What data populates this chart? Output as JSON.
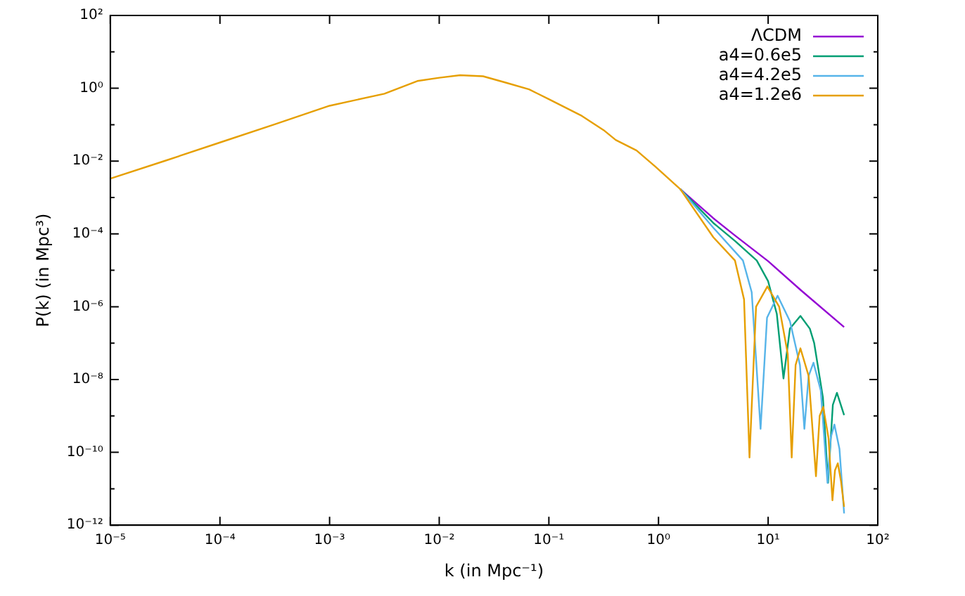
{
  "chart_data": {
    "type": "line",
    "xlabel": "k (in Mpc⁻¹)",
    "ylabel": "P(k) (in Mpc³)",
    "log": "xy",
    "grid": false,
    "legend": "top right",
    "marker": "none",
    "line_style": "solid",
    "xlim": [
      1e-05,
      100
    ],
    "ylim": [
      1e-12,
      100
    ],
    "xticks": [
      {
        "value": 1e-05,
        "label": "10⁻⁵"
      },
      {
        "value": 0.0001,
        "label": "10⁻⁴"
      },
      {
        "value": 0.001,
        "label": "10⁻³"
      },
      {
        "value": 0.01,
        "label": "10⁻²"
      },
      {
        "value": 0.1,
        "label": "10⁻¹"
      },
      {
        "value": 1,
        "label": "10⁰"
      },
      {
        "value": 10,
        "label": "10¹"
      },
      {
        "value": 100,
        "label": "10²"
      }
    ],
    "yticks": [
      {
        "value": 1e-12,
        "label": "10⁻¹²"
      },
      {
        "value": 1e-11,
        "label": null
      },
      {
        "value": 1e-10,
        "label": "10⁻¹⁰"
      },
      {
        "value": 1e-09,
        "label": null
      },
      {
        "value": 1e-08,
        "label": "10⁻⁸"
      },
      {
        "value": 1e-07,
        "label": null
      },
      {
        "value": 1e-06,
        "label": "10⁻⁶"
      },
      {
        "value": 1e-05,
        "label": null
      },
      {
        "value": 0.0001,
        "label": "10⁻⁴"
      },
      {
        "value": 0.001,
        "label": null
      },
      {
        "value": 0.01,
        "label": "10⁻²"
      },
      {
        "value": 0.1,
        "label": null
      },
      {
        "value": 1,
        "label": "10⁰"
      },
      {
        "value": 10,
        "label": null
      },
      {
        "value": 100,
        "label": "10²"
      }
    ],
    "series": [
      {
        "name": "ΛCDM",
        "color": "#9400d3",
        "x": [
          1.58,
          3.16,
          5.01,
          10,
          20,
          49.3
        ],
        "values": [
          0.0017,
          0.00027,
          8.9e-05,
          1.78e-05,
          2.8e-06,
          2.75e-07
        ]
      },
      {
        "name": "a4=0.6e5",
        "color": "#009e73",
        "x": [
          1.58,
          3.16,
          5.01,
          7.87,
          10,
          12.0,
          13.8,
          15.8,
          19.7,
          24.0,
          26.3,
          31.6,
          35.2,
          38.9,
          42.4,
          49.3
        ],
        "values": [
          0.0017,
          0.0002,
          6.3e-05,
          1.86e-05,
          5e-06,
          6.3e-07,
          1.07e-08,
          2.5e-07,
          5.6e-07,
          2.5e-07,
          1e-07,
          3.2e-09,
          1.45e-11,
          2e-09,
          4.3e-09,
          1.05e-09
        ]
      },
      {
        "name": "a4=4.2e5",
        "color": "#56b4e9",
        "x": [
          1.58,
          3.16,
          5.89,
          7.08,
          8.53,
          9.77,
          12.2,
          15.8,
          19.5,
          21.4,
          23.4,
          25.9,
          30.2,
          34.8,
          37.2,
          40.2,
          44.7,
          49.3
        ],
        "values": [
          0.0017,
          0.000148,
          1.86e-05,
          2.5e-06,
          4.4e-10,
          5e-07,
          2e-06,
          4e-07,
          2.5e-08,
          4.4e-10,
          1.26e-08,
          2.9e-08,
          5e-09,
          1.45e-11,
          2.5e-10,
          5.8e-10,
          1.26e-10,
          2.1e-12
        ]
      },
      {
        "name": "a4=1.2e6",
        "color": "#e69f00",
        "x": [
          1e-05,
          3.16e-05,
          0.0001,
          0.000316,
          0.001,
          0.00316,
          0.00631,
          0.01,
          0.0155,
          0.0251,
          0.0398,
          0.066,
          0.1,
          0.12,
          0.2,
          0.316,
          0.407,
          0.631,
          0.933,
          1.38,
          1.58,
          3.16,
          4.98,
          6.03,
          6.76,
          7.76,
          9.84,
          12.6,
          15.1,
          16.4,
          17.8,
          19.7,
          23.4,
          27.3,
          29.5,
          31.8,
          35.5,
          38.6,
          40.7,
          43.2,
          46.2,
          49.3
        ],
        "values": [
          0.0033,
          0.0102,
          0.0324,
          0.102,
          0.331,
          0.708,
          1.58,
          1.95,
          2.29,
          2.14,
          1.45,
          0.933,
          0.501,
          0.38,
          0.174,
          0.0708,
          0.038,
          0.0195,
          0.0071,
          0.00245,
          0.0017,
          8.1e-05,
          1.86e-05,
          1.58e-06,
          7.2e-11,
          1e-06,
          3.6e-06,
          1e-06,
          5e-08,
          7.2e-11,
          2.5e-08,
          7.2e-08,
          1.26e-08,
          2.2e-11,
          1e-09,
          1.78e-09,
          2.5e-10,
          4.8e-12,
          3.2e-11,
          5e-11,
          1.6e-11,
          3.2e-12
        ]
      }
    ]
  }
}
